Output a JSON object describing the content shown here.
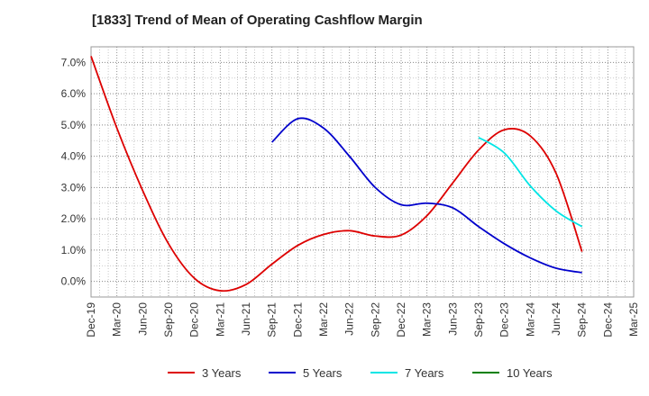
{
  "chart_data": {
    "type": "line",
    "title": "[1833]  Trend of Mean of Operating Cashflow Margin",
    "xlabel": "",
    "ylabel": "",
    "x_tick_labels": [
      "Dec-19",
      "Mar-20",
      "Jun-20",
      "Sep-20",
      "Dec-20",
      "Mar-21",
      "Jun-21",
      "Sep-21",
      "Dec-21",
      "Mar-22",
      "Jun-22",
      "Sep-22",
      "Dec-22",
      "Mar-23",
      "Jun-23",
      "Sep-23",
      "Dec-23",
      "Mar-24",
      "Jun-24",
      "Sep-24",
      "Dec-24",
      "Mar-25"
    ],
    "y_tick_labels": [
      "0.0%",
      "1.0%",
      "2.0%",
      "3.0%",
      "4.0%",
      "5.0%",
      "6.0%",
      "7.0%"
    ],
    "ylim": [
      -0.5,
      7.5
    ],
    "grid": true,
    "legend_position": "bottom",
    "series": [
      {
        "name": "3 Years",
        "color": "#dd0000",
        "values": [
          7.2,
          4.9,
          2.9,
          1.2,
          0.1,
          -0.3,
          -0.1,
          0.55,
          1.15,
          1.5,
          1.62,
          1.45,
          1.48,
          2.1,
          3.15,
          4.2,
          4.85,
          4.65,
          3.45,
          0.95,
          null,
          null
        ]
      },
      {
        "name": "5 Years",
        "color": "#0000cc",
        "values": [
          null,
          null,
          null,
          null,
          null,
          null,
          null,
          4.45,
          5.2,
          4.9,
          4.0,
          3.0,
          2.45,
          2.5,
          2.35,
          1.75,
          1.2,
          0.75,
          0.42,
          0.28,
          null,
          null
        ]
      },
      {
        "name": "7 Years",
        "color": "#00e5e5",
        "values": [
          null,
          null,
          null,
          null,
          null,
          null,
          null,
          null,
          null,
          null,
          null,
          null,
          null,
          null,
          null,
          4.6,
          4.1,
          3.05,
          2.25,
          1.75,
          null,
          null
        ]
      },
      {
        "name": "10 Years",
        "color": "#008000",
        "values": [
          null,
          null,
          null,
          null,
          null,
          null,
          null,
          null,
          null,
          null,
          null,
          null,
          null,
          null,
          null,
          null,
          null,
          null,
          null,
          null,
          null,
          null
        ]
      }
    ]
  }
}
